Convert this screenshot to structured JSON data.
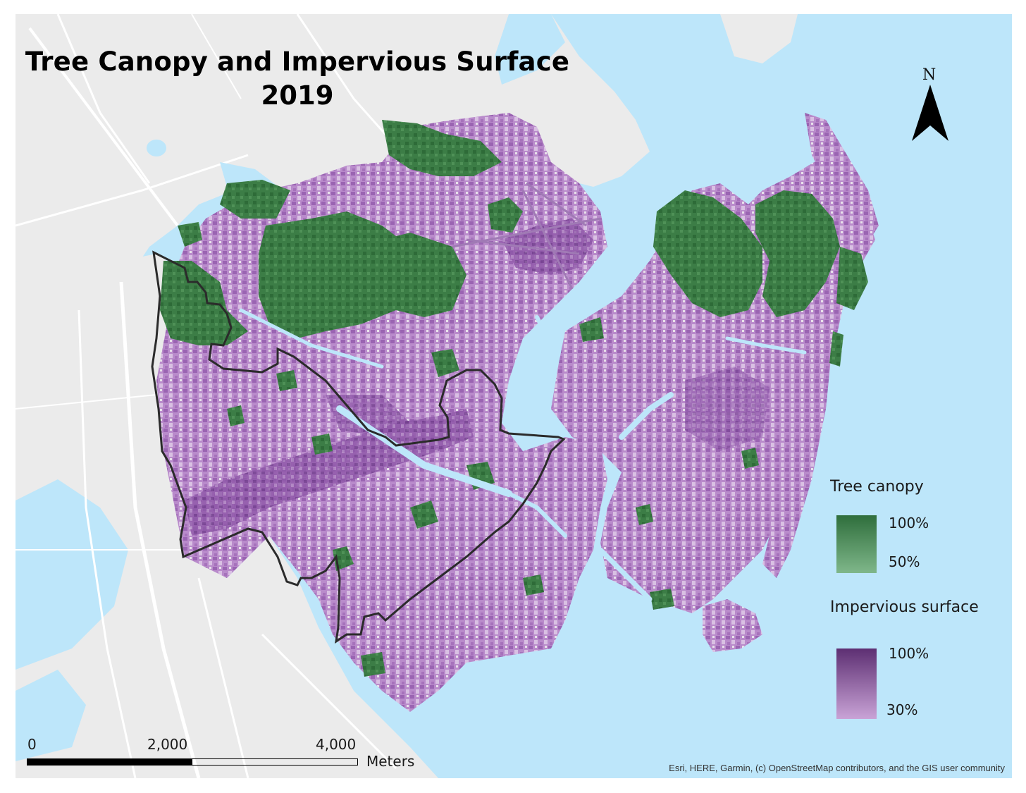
{
  "title": {
    "line1": "Tree Canopy and Impervious Surface",
    "line2": "2019"
  },
  "north_arrow": {
    "label": "N"
  },
  "legend": {
    "tree_canopy": {
      "title": "Tree canopy",
      "max_label": "100%",
      "min_label": "50%",
      "color_dark": "#2f6e3c",
      "color_light": "#7fb78a"
    },
    "impervious_surface": {
      "title": "Impervious surface",
      "max_label": "100%",
      "min_label": "30%",
      "color_dark": "#5d2f72",
      "color_light": "#c9a3d6"
    }
  },
  "scale_bar": {
    "labels": [
      "0",
      "2,000",
      "4,000"
    ],
    "unit": "Meters"
  },
  "attribution": "Esri, HERE, Garmin, (c) OpenStreetMap contributors, and the GIS user community",
  "basemap_colors": {
    "water": "#bde6fa",
    "land": "#ebebeb",
    "road": "#ffffff"
  }
}
